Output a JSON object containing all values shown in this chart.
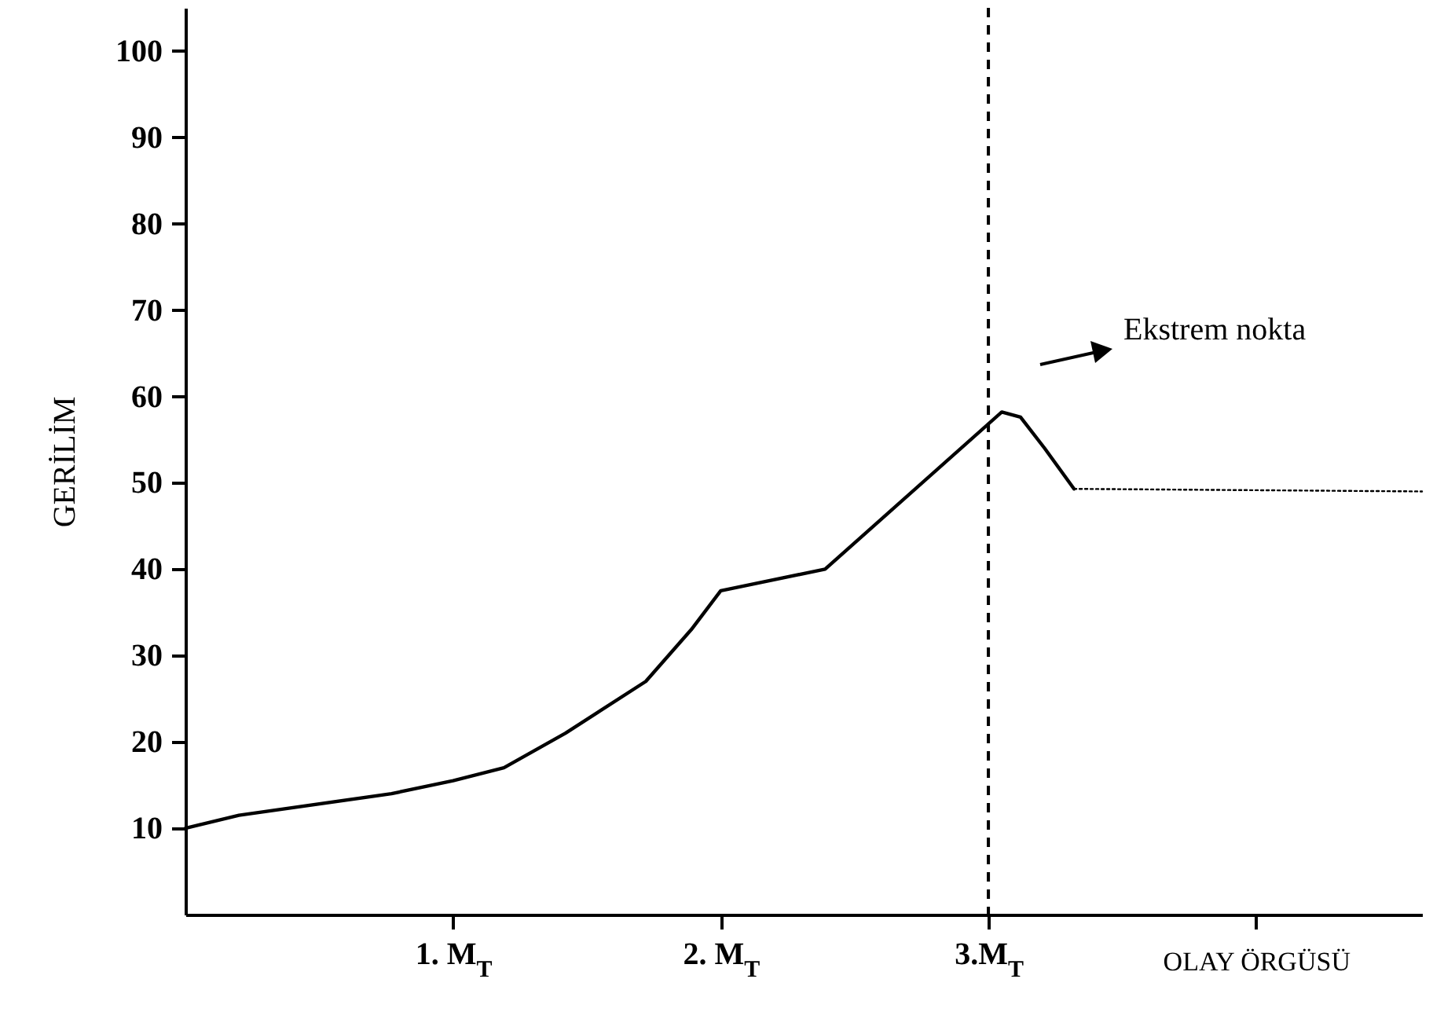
{
  "chart_data": {
    "type": "line",
    "ylabel": "GERİLİM",
    "xlabel": "OLAY ÖRGÜSÜ",
    "xlim": [
      0,
      4.62
    ],
    "ylim": [
      0,
      105
    ],
    "xticks": [
      {
        "value": 1,
        "label": "1. M$_{T}$"
      },
      {
        "value": 2,
        "label": "2. M$_{T}$"
      },
      {
        "value": 3,
        "label": "3.M$_{T}$"
      },
      {
        "value": 4,
        "label": null
      }
    ],
    "yticks": [
      10,
      20,
      30,
      40,
      50,
      60,
      70,
      80,
      90,
      100
    ],
    "grid": false,
    "marker": "none",
    "series": [
      {
        "color": "#000000",
        "line_style": "solid",
        "x": [
          0,
          0.2,
          0.77,
          1.0,
          1.19,
          1.42,
          1.72,
          1.89,
          2.0,
          2.39,
          3.05,
          3.12,
          3.21,
          3.32
        ],
        "values": [
          10,
          11.5,
          14,
          15.5,
          17,
          21,
          27,
          33,
          37.5,
          40,
          58.2,
          57.6,
          54,
          49.3
        ]
      },
      {
        "color": "#000000",
        "line_style": "dotted",
        "x": [
          3.32,
          4.62
        ],
        "values": [
          49.3,
          49
        ]
      }
    ],
    "ref_lines": [
      {
        "axis": "x",
        "value": 3,
        "line_style": "dashed",
        "color": "#000000"
      }
    ],
    "annotations": [
      "Ekstrem nokta"
    ]
  }
}
